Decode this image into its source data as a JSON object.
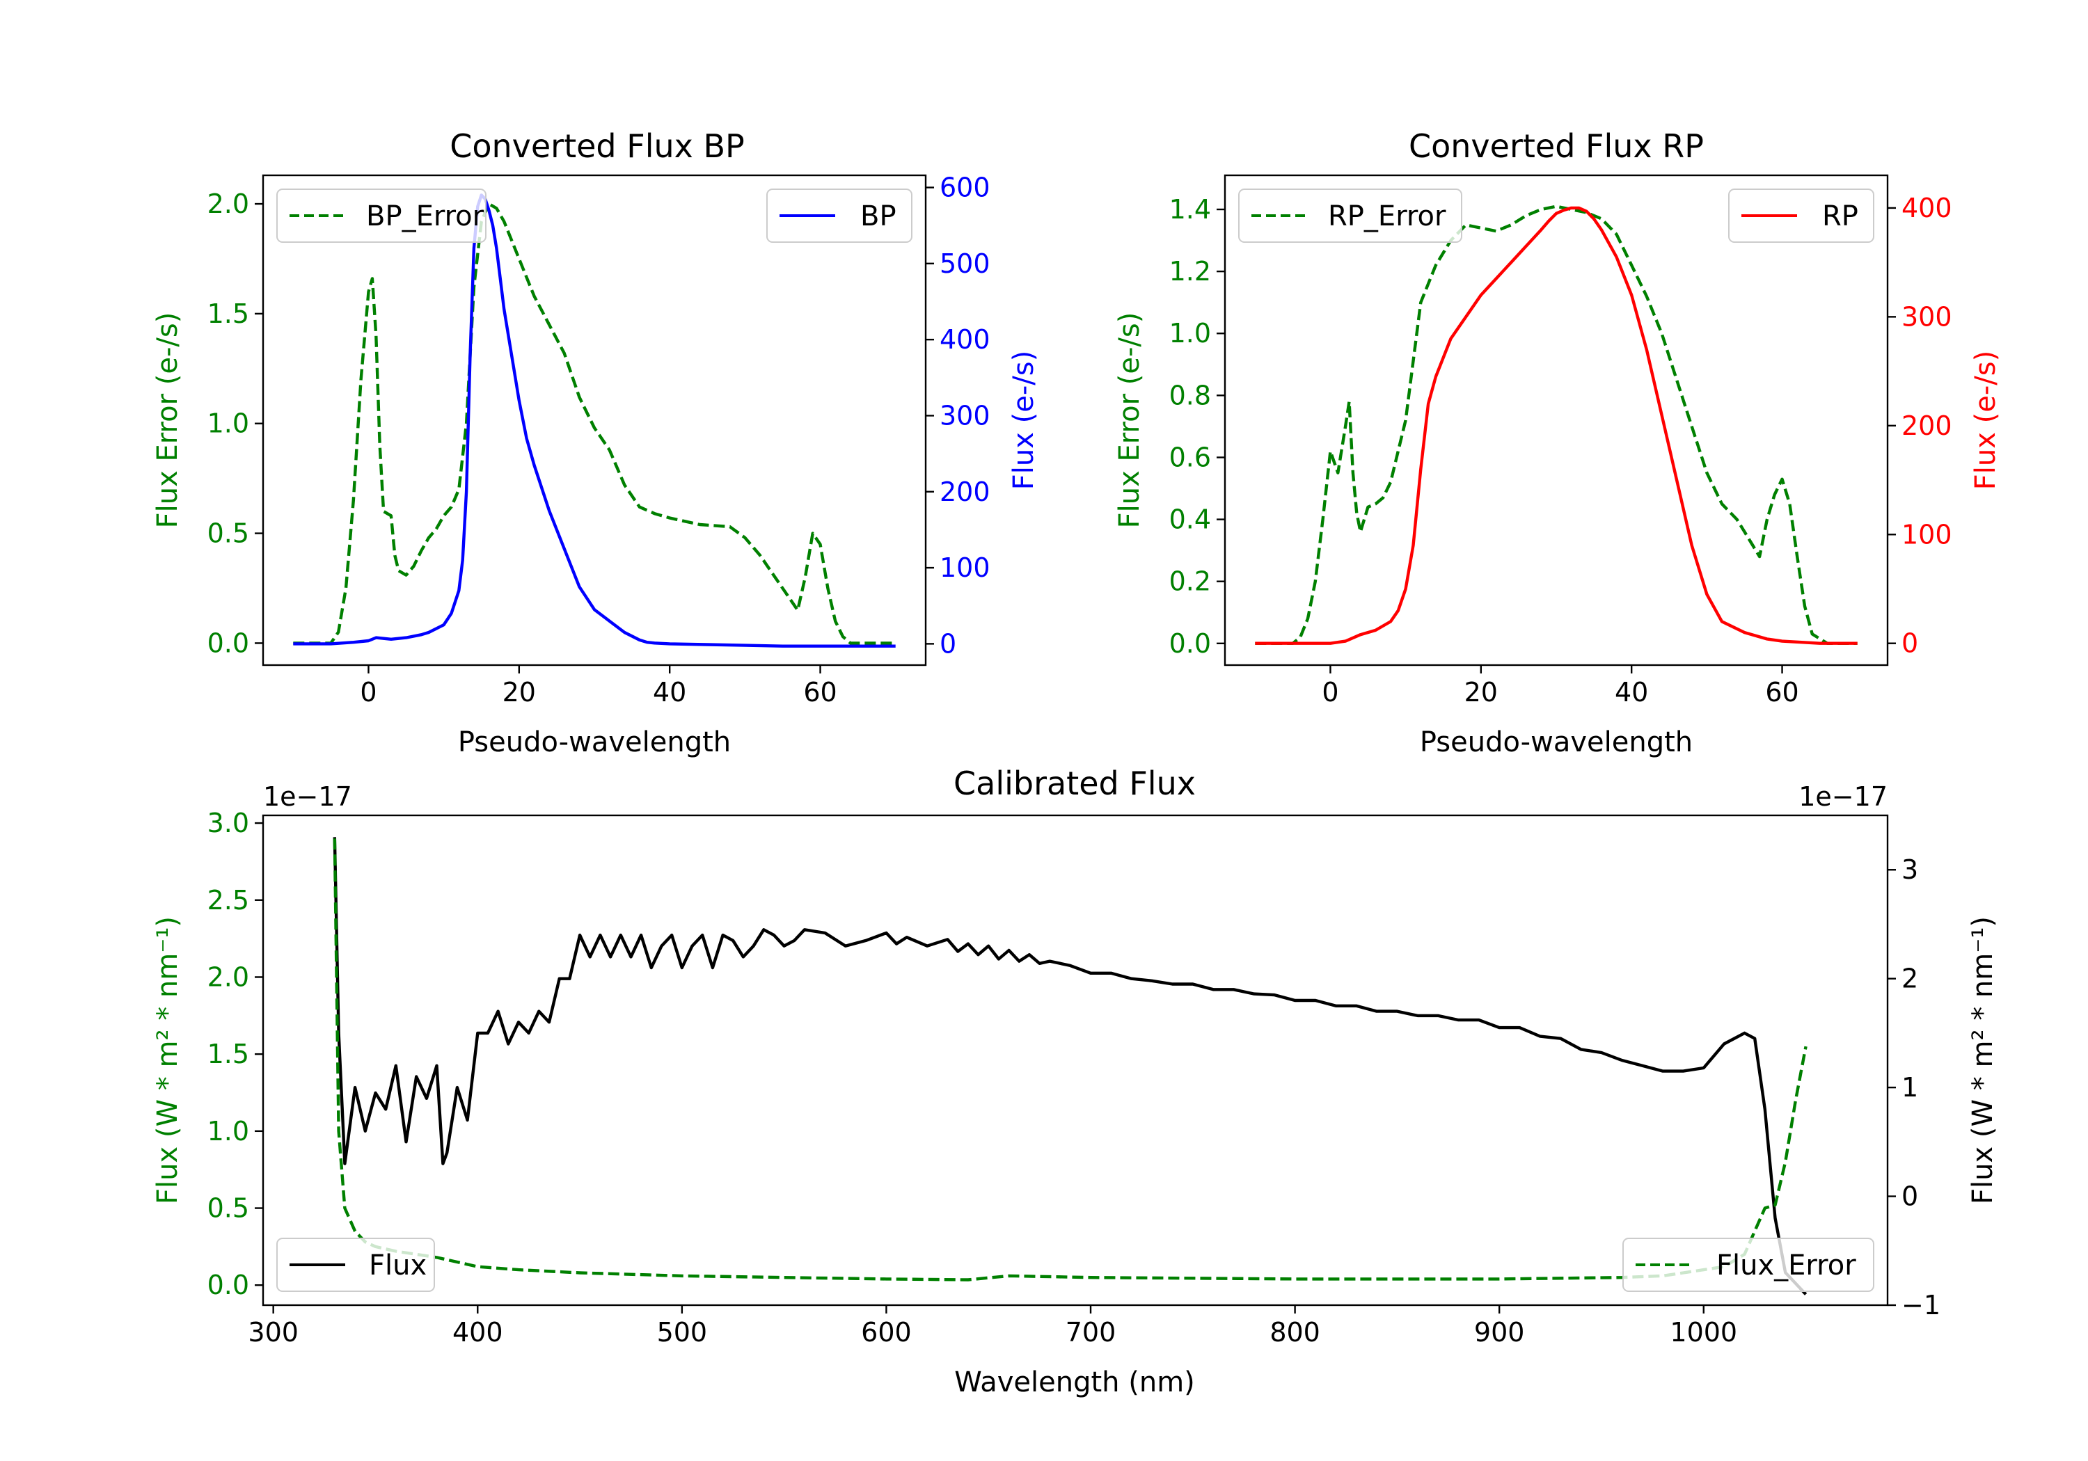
{
  "chart_data": [
    {
      "type": "line",
      "title": "Converted Flux BP",
      "xlabel": "Pseudo-wavelength",
      "ylabel_left": "Flux Error (e-/s)",
      "ylabel_right": "Flux (e-/s)",
      "xlim": [
        -14,
        74
      ],
      "ylim_left": [
        -0.1,
        2.13
      ],
      "ylim_right": [
        -28,
        616
      ],
      "x_ticks": [
        "0",
        "20",
        "40",
        "60"
      ],
      "left_ticks": [
        "0.0",
        "0.5",
        "1.0",
        "1.5",
        "2.0"
      ],
      "right_ticks": [
        "0",
        "100",
        "200",
        "300",
        "400",
        "500",
        "600"
      ],
      "colors": {
        "error": "#008000",
        "flux": "#0000ff"
      },
      "series": [
        {
          "name": "BP_Error",
          "axis": "left",
          "style": "dashed",
          "x": [
            -10,
            -5,
            -4,
            -3,
            -2,
            -1,
            0,
            0.5,
            1,
            1.5,
            2,
            3,
            3.5,
            4,
            5,
            6,
            7,
            8,
            9,
            10,
            11,
            12,
            13,
            14,
            15,
            16,
            17,
            18,
            20,
            22,
            24,
            26,
            28,
            30,
            32,
            34,
            36,
            38,
            40,
            44,
            48,
            50,
            52,
            54,
            56,
            57,
            58,
            59,
            60,
            61,
            62,
            63,
            64,
            66,
            70
          ],
          "y": [
            0,
            0,
            0.05,
            0.25,
            0.65,
            1.2,
            1.6,
            1.66,
            1.4,
            0.9,
            0.6,
            0.58,
            0.4,
            0.33,
            0.31,
            0.35,
            0.42,
            0.48,
            0.52,
            0.58,
            0.62,
            0.7,
            1.0,
            1.62,
            1.92,
            2.0,
            1.98,
            1.92,
            1.75,
            1.58,
            1.45,
            1.32,
            1.12,
            0.98,
            0.88,
            0.72,
            0.62,
            0.59,
            0.57,
            0.54,
            0.53,
            0.48,
            0.4,
            0.3,
            0.2,
            0.15,
            0.3,
            0.5,
            0.45,
            0.25,
            0.1,
            0.03,
            0,
            0,
            0
          ]
        },
        {
          "name": "BP",
          "axis": "right",
          "style": "solid",
          "x": [
            -10,
            -5,
            -2,
            0,
            1,
            3,
            5,
            7,
            8,
            10,
            11,
            12,
            12.5,
            13,
            13.5,
            14,
            14.5,
            15,
            15.5,
            16,
            16.5,
            17,
            18,
            19,
            20,
            21,
            22,
            24,
            26,
            28,
            30,
            32,
            34,
            36,
            37,
            38,
            40,
            45,
            50,
            55,
            60,
            65,
            70
          ],
          "y": [
            0,
            0,
            2,
            4,
            8,
            6,
            8,
            12,
            15,
            25,
            40,
            70,
            110,
            200,
            380,
            520,
            575,
            590,
            585,
            570,
            550,
            520,
            440,
            380,
            320,
            270,
            235,
            175,
            125,
            75,
            45,
            30,
            15,
            5,
            2,
            1,
            0,
            -1,
            -2,
            -3,
            -3,
            -3,
            -3
          ]
        }
      ],
      "legend": [
        {
          "name": "BP_Error",
          "position": "top-left"
        },
        {
          "name": "BP",
          "position": "top-right"
        }
      ]
    },
    {
      "type": "line",
      "title": "Converted Flux RP",
      "xlabel": "Pseudo-wavelength",
      "ylabel_left": "Flux Error (e-/s)",
      "ylabel_right": "Flux (e-/s)",
      "xlim": [
        -14,
        74
      ],
      "ylim_left": [
        -0.07,
        1.51
      ],
      "ylim_right": [
        -20,
        430
      ],
      "x_ticks": [
        "0",
        "20",
        "40",
        "60"
      ],
      "left_ticks": [
        "0.0",
        "0.2",
        "0.4",
        "0.6",
        "0.8",
        "1.0",
        "1.2",
        "1.4"
      ],
      "right_ticks": [
        "0",
        "100",
        "200",
        "300",
        "400"
      ],
      "colors": {
        "error": "#008000",
        "flux": "#ff0000"
      },
      "series": [
        {
          "name": "RP_Error",
          "axis": "left",
          "style": "dashed",
          "x": [
            -10,
            -5,
            -4,
            -3,
            -2,
            -1,
            0,
            1,
            2,
            2.5,
            3,
            3.5,
            4,
            5,
            6,
            7,
            8,
            10,
            12,
            14,
            16,
            18,
            20,
            22,
            24,
            26,
            28,
            30,
            32,
            34,
            36,
            38,
            40,
            42,
            44,
            46,
            48,
            50,
            52,
            54,
            55,
            56,
            57,
            58,
            59,
            60,
            61,
            62,
            63,
            64,
            66,
            70
          ],
          "y": [
            0,
            0,
            0.02,
            0.08,
            0.2,
            0.4,
            0.62,
            0.55,
            0.7,
            0.78,
            0.55,
            0.42,
            0.36,
            0.44,
            0.45,
            0.47,
            0.52,
            0.72,
            1.1,
            1.22,
            1.3,
            1.35,
            1.34,
            1.33,
            1.35,
            1.38,
            1.4,
            1.41,
            1.4,
            1.39,
            1.37,
            1.32,
            1.22,
            1.12,
            1.0,
            0.85,
            0.7,
            0.55,
            0.45,
            0.4,
            0.36,
            0.32,
            0.28,
            0.4,
            0.48,
            0.53,
            0.45,
            0.28,
            0.12,
            0.03,
            0,
            0
          ]
        },
        {
          "name": "RP",
          "axis": "right",
          "style": "solid",
          "x": [
            -10,
            -5,
            0,
            2,
            4,
            6,
            8,
            9,
            10,
            11,
            12,
            13,
            14,
            16,
            18,
            20,
            22,
            24,
            26,
            28,
            29,
            30,
            31,
            32,
            33,
            34,
            35,
            36,
            38,
            40,
            42,
            44,
            46,
            48,
            50,
            52,
            55,
            58,
            60,
            65,
            70
          ],
          "y": [
            0,
            0,
            0,
            2,
            8,
            12,
            20,
            30,
            50,
            90,
            160,
            220,
            245,
            280,
            300,
            320,
            335,
            350,
            365,
            380,
            388,
            395,
            398,
            400,
            400,
            397,
            390,
            380,
            355,
            320,
            270,
            210,
            150,
            90,
            45,
            20,
            10,
            4,
            2,
            0,
            0
          ]
        }
      ],
      "legend": [
        {
          "name": "RP_Error",
          "position": "top-left"
        },
        {
          "name": "RP",
          "position": "top-right"
        }
      ]
    },
    {
      "type": "line",
      "title": "Calibrated Flux",
      "xlabel": "Wavelength (nm)",
      "ylabel_left": "Flux (W * m² * nm⁻¹)",
      "ylabel_right": "Flux (W * m² * nm⁻¹)",
      "offset_left": "1e−17",
      "offset_right": "1e−17",
      "xlim": [
        295,
        1090
      ],
      "ylim_left": [
        -0.13,
        3.05
      ],
      "ylim_right": [
        -1.0,
        3.5
      ],
      "x_ticks": [
        "300",
        "400",
        "500",
        "600",
        "700",
        "800",
        "900",
        "1000"
      ],
      "left_ticks": [
        "0.0",
        "0.5",
        "1.0",
        "1.5",
        "2.0",
        "2.5",
        "3.0"
      ],
      "right_ticks": [
        "−1",
        "0",
        "1",
        "2",
        "3"
      ],
      "colors": {
        "error": "#008000",
        "flux": "#000000"
      },
      "series": [
        {
          "name": "Flux",
          "axis": "right",
          "style": "solid",
          "x": [
            330,
            332,
            335,
            340,
            345,
            350,
            355,
            360,
            365,
            370,
            375,
            380,
            383,
            385,
            390,
            395,
            400,
            405,
            410,
            415,
            420,
            425,
            430,
            435,
            440,
            445,
            450,
            455,
            460,
            465,
            470,
            475,
            480,
            485,
            490,
            495,
            500,
            505,
            510,
            515,
            520,
            525,
            530,
            535,
            540,
            545,
            550,
            555,
            560,
            570,
            580,
            590,
            600,
            605,
            610,
            620,
            630,
            635,
            640,
            645,
            650,
            655,
            660,
            665,
            670,
            675,
            680,
            690,
            700,
            710,
            720,
            730,
            740,
            750,
            760,
            770,
            780,
            790,
            800,
            810,
            820,
            830,
            840,
            850,
            860,
            870,
            880,
            890,
            900,
            910,
            920,
            930,
            940,
            950,
            960,
            970,
            980,
            990,
            1000,
            1010,
            1020,
            1025,
            1030,
            1035,
            1040,
            1045,
            1050
          ],
          "y": [
            3.3,
            1.5,
            0.3,
            1.0,
            0.6,
            0.95,
            0.8,
            1.2,
            0.5,
            1.1,
            0.9,
            1.2,
            0.3,
            0.4,
            1.0,
            0.7,
            1.5,
            1.5,
            1.7,
            1.4,
            1.6,
            1.5,
            1.7,
            1.6,
            2.0,
            2.0,
            2.4,
            2.2,
            2.4,
            2.2,
            2.4,
            2.2,
            2.4,
            2.1,
            2.3,
            2.4,
            2.1,
            2.3,
            2.4,
            2.1,
            2.4,
            2.35,
            2.2,
            2.3,
            2.45,
            2.4,
            2.3,
            2.35,
            2.45,
            2.42,
            2.3,
            2.35,
            2.42,
            2.32,
            2.38,
            2.3,
            2.36,
            2.25,
            2.32,
            2.22,
            2.3,
            2.18,
            2.26,
            2.16,
            2.22,
            2.14,
            2.16,
            2.12,
            2.05,
            2.05,
            2.0,
            1.98,
            1.95,
            1.95,
            1.9,
            1.9,
            1.86,
            1.85,
            1.8,
            1.8,
            1.75,
            1.75,
            1.7,
            1.7,
            1.66,
            1.66,
            1.62,
            1.62,
            1.55,
            1.55,
            1.47,
            1.45,
            1.35,
            1.32,
            1.25,
            1.2,
            1.15,
            1.15,
            1.18,
            1.4,
            1.5,
            1.45,
            0.8,
            -0.2,
            -0.7,
            -0.8,
            -0.9
          ]
        },
        {
          "name": "Flux_Error",
          "axis": "left",
          "style": "dashed",
          "x": [
            330,
            332,
            335,
            340,
            345,
            350,
            360,
            370,
            380,
            390,
            400,
            420,
            450,
            500,
            550,
            600,
            640,
            660,
            700,
            800,
            900,
            960,
            980,
            990,
            1000,
            1010,
            1020,
            1030,
            1035,
            1040,
            1045,
            1050
          ],
          "y": [
            2.9,
            1.0,
            0.5,
            0.35,
            0.28,
            0.25,
            0.22,
            0.2,
            0.18,
            0.15,
            0.12,
            0.1,
            0.08,
            0.06,
            0.05,
            0.04,
            0.035,
            0.06,
            0.05,
            0.04,
            0.04,
            0.05,
            0.06,
            0.08,
            0.1,
            0.12,
            0.2,
            0.5,
            0.52,
            0.8,
            1.2,
            1.55
          ]
        }
      ],
      "legend": [
        {
          "name": "Flux",
          "position": "lower-left"
        },
        {
          "name": "Flux_Error",
          "position": "lower-right"
        }
      ]
    }
  ]
}
